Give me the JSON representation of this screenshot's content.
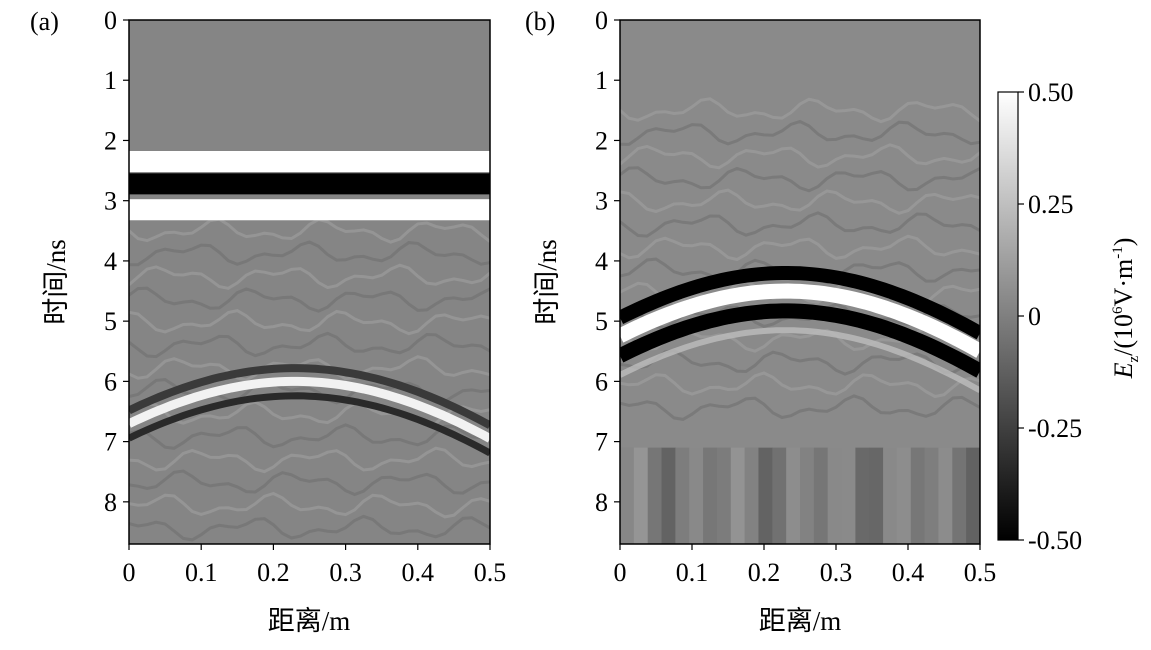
{
  "chart_data": [
    {
      "type": "heatmap",
      "panel_label": "(a)",
      "xlabel": "距离/m",
      "ylabel": "时间/ns",
      "xlim": [
        0,
        0.5
      ],
      "ylim": [
        8.7,
        0
      ],
      "x_ticks": [
        "0",
        "0.1",
        "0.2",
        "0.3",
        "0.4",
        "0.5"
      ],
      "y_ticks": [
        "0",
        "1",
        "2",
        "3",
        "4",
        "5",
        "6",
        "7",
        "8"
      ],
      "features": {
        "direct_wave": {
          "white_top_ns": 2.35,
          "black_ns": 2.72,
          "white_bottom_ns": 3.15
        },
        "hyperbola": {
          "apex_x_m": 0.23,
          "apex_t_ns": 6.0,
          "left_t_ns": 6.9,
          "right_t_ns": 6.95
        }
      }
    },
    {
      "type": "heatmap",
      "panel_label": "(b)",
      "xlabel": "距离/m",
      "ylabel": "时间/ns",
      "xlim": [
        0,
        0.5
      ],
      "ylim": [
        8.7,
        0
      ],
      "x_ticks": [
        "0",
        "0.1",
        "0.2",
        "0.3",
        "0.4",
        "0.5"
      ],
      "y_ticks": [
        "0",
        "1",
        "2",
        "3",
        "4",
        "5",
        "6",
        "7",
        "8"
      ],
      "features": {
        "hyperbola": {
          "apex_x_m": 0.23,
          "apex_t_ns": 4.5,
          "left_t_ns": 5.4,
          "right_t_ns": 5.5
        }
      }
    }
  ],
  "colorbar": {
    "title": "E",
    "title_sub": "z",
    "title_rest_prefix": "/(10",
    "title_sup": "6",
    "title_rest_middle": "V·m",
    "title_sup2": "-1",
    "title_rest_suffix": ")",
    "range": [
      -0.5,
      0.5
    ],
    "tick_labels": [
      "0.50",
      "0.25",
      "0",
      "-0.25",
      "-0.50"
    ],
    "colormap": [
      "#000000",
      "#ffffff"
    ]
  }
}
